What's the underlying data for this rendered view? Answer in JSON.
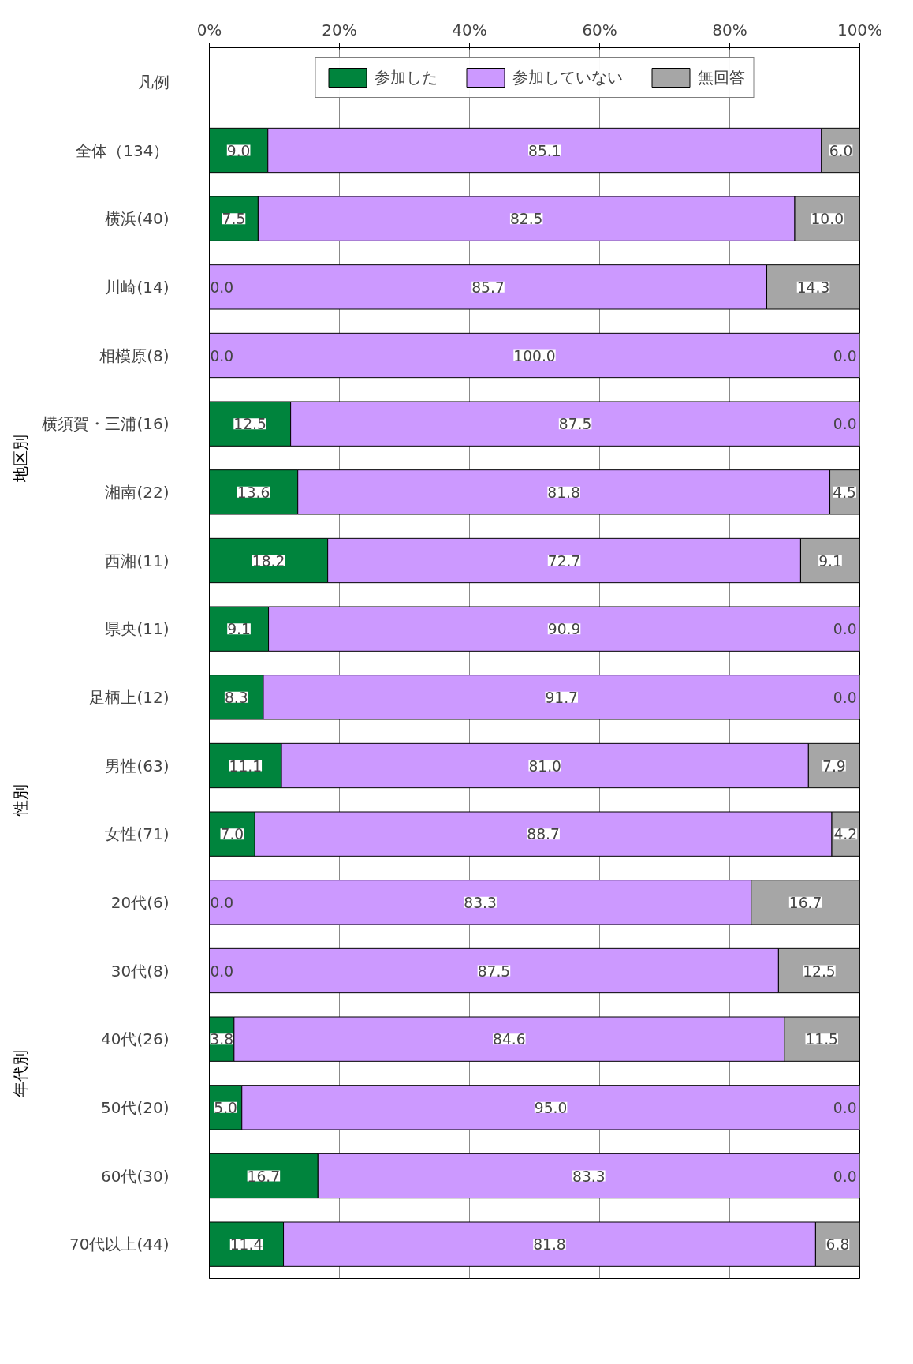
{
  "chart_data": {
    "type": "bar",
    "orientation": "horizontal",
    "stacked": true,
    "legend": "top",
    "legend_title": "凡例",
    "grid": "x",
    "categories": [
      "全体（134）",
      "横浜(40)",
      "川崎(14)",
      "相模原(8)",
      "横須賀・三浦(16)",
      "湘南(22)",
      "西湘(11)",
      "県央(11)",
      "足柄上(12)",
      "男性(63)",
      "女性(71)",
      "20代(6)",
      "30代(8)",
      "40代(26)",
      "50代(20)",
      "60代(30)",
      "70代以上(44)"
    ],
    "xlim": [
      0,
      100
    ],
    "xticks": [
      {
        "value": 0,
        "label": "0%"
      },
      {
        "value": 20,
        "label": "20%"
      },
      {
        "value": 40,
        "label": "40%"
      },
      {
        "value": 60,
        "label": "60%"
      },
      {
        "value": 80,
        "label": "80%"
      },
      {
        "value": 100,
        "label": "100%"
      }
    ],
    "series": [
      {
        "name": "参加した",
        "color": "#00843d",
        "values": [
          9.0,
          7.5,
          0.0,
          0.0,
          12.5,
          13.6,
          18.2,
          9.1,
          8.3,
          11.1,
          7.0,
          0.0,
          0.0,
          3.8,
          5.0,
          16.7,
          11.4
        ],
        "value_labels": [
          "9.0",
          "7.5",
          "0.0",
          "0.0",
          "12.5",
          "13.6",
          "18.2",
          "9.1",
          "8.3",
          "11.1",
          "7.0",
          "0.0",
          "0.0",
          "3.8",
          "5.0",
          "16.7",
          "11.4"
        ]
      },
      {
        "name": "参加していない",
        "color": "#cc99ff",
        "values": [
          85.1,
          82.5,
          85.7,
          100.0,
          87.5,
          81.8,
          72.7,
          90.9,
          91.7,
          81.0,
          88.7,
          83.3,
          87.5,
          84.6,
          95.0,
          83.3,
          81.8
        ],
        "value_labels": [
          "85.1",
          "82.5",
          "85.7",
          "100.0",
          "87.5",
          "81.8",
          "72.7",
          "90.9",
          "91.7",
          "81.0",
          "88.7",
          "83.3",
          "87.5",
          "84.6",
          "95.0",
          "83.3",
          "81.8"
        ]
      },
      {
        "name": "無回答",
        "color": "#a6a6a6",
        "values": [
          6.0,
          10.0,
          14.3,
          0.0,
          0.0,
          4.5,
          9.1,
          0.0,
          0.0,
          7.9,
          4.2,
          16.7,
          12.5,
          11.5,
          0.0,
          0.0,
          6.8
        ],
        "value_labels": [
          "6.0",
          "10.0",
          "14.3",
          "0.0",
          "0.0",
          "4.5",
          "9.1",
          "0.0",
          "0.0",
          "7.9",
          "4.2",
          "16.7",
          "12.5",
          "11.5",
          "0.0",
          "0.0",
          "6.8"
        ]
      }
    ],
    "annotations": [
      "地区別",
      "性別",
      "年代別"
    ]
  }
}
